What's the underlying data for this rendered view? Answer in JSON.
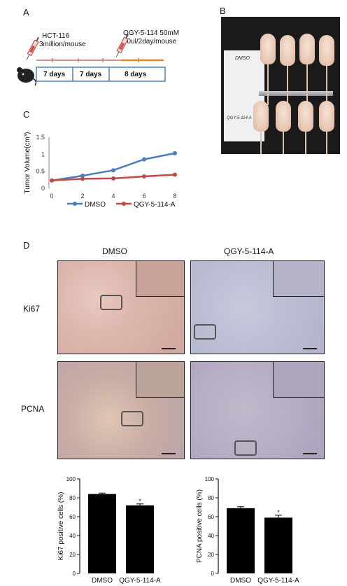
{
  "panels": {
    "A": "A",
    "B": "B",
    "C": "C",
    "D": "D"
  },
  "panelA": {
    "cell_line": "HCT-116",
    "cell_dose": "3million/mouse",
    "drug": "QGY-5-114  50mM",
    "drug_dose": "40ul/2day/mouse",
    "periods": [
      "7 days",
      "7 days",
      "8 days"
    ]
  },
  "panelB": {
    "card_top": "DMSO",
    "card_bottom": "QGY-5-114-A"
  },
  "chart_data": [
    {
      "type": "line",
      "panel": "C",
      "x": [
        0,
        2,
        4,
        6,
        8
      ],
      "series": [
        {
          "name": "DMSO",
          "values": [
            0.23,
            0.37,
            0.53,
            0.85,
            1.03
          ],
          "color": "#4a7ebb"
        },
        {
          "name": "QGY-5-114-A",
          "values": [
            0.23,
            0.28,
            0.29,
            0.35,
            0.4
          ],
          "color": "#be4b48"
        }
      ],
      "xlabel": "",
      "ylabel": "Tumor Volume(cm³)",
      "xticks": [
        "0",
        "2",
        "4",
        "6",
        "8"
      ],
      "yticks": [
        "0",
        "0.5",
        "1",
        "1.5"
      ],
      "ylim": [
        0,
        1.5
      ],
      "xlim": [
        0,
        8
      ],
      "legend": "bottom"
    },
    {
      "type": "bar",
      "panel": "D-left",
      "categories": [
        "DMSO",
        "QGY-5-114-A"
      ],
      "values": [
        84,
        72
      ],
      "errors": [
        1,
        1.5
      ],
      "significance": [
        "",
        "*"
      ],
      "ylabel": "Ki67 positive cells (%)",
      "yticks": [
        "0",
        "20",
        "40",
        "60",
        "80",
        "100"
      ],
      "ylim": [
        0,
        100
      ]
    },
    {
      "type": "bar",
      "panel": "D-right",
      "categories": [
        "DMSO",
        "QGY-5-114-A"
      ],
      "values": [
        69,
        59
      ],
      "errors": [
        1.5,
        2.5
      ],
      "significance": [
        "",
        "*"
      ],
      "ylabel": "PCNA positive cells (%)",
      "yticks": [
        "0",
        "20",
        "40",
        "60",
        "80",
        "100"
      ],
      "ylim": [
        0,
        100
      ]
    }
  ],
  "panelD": {
    "col_headers": [
      "DMSO",
      "QGY-5-114-A"
    ],
    "row_headers": [
      "Ki67",
      "PCNA"
    ]
  }
}
